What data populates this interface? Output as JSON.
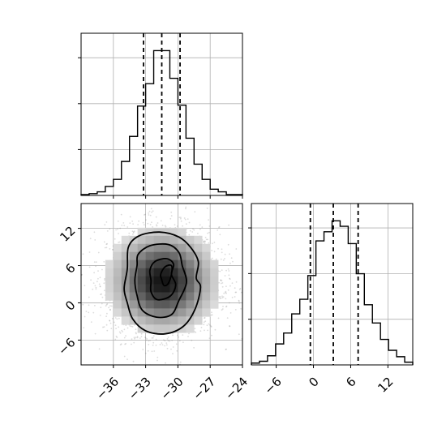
{
  "chart_data": {
    "type": "corner",
    "grid": true,
    "parameters": [
      {
        "range": [
          -39,
          -24
        ],
        "ticks": [
          -36,
          -33,
          -30,
          -27,
          -24
        ],
        "tick_labels": [
          "−36",
          "−33",
          "−30",
          "−27",
          "−24"
        ],
        "quantiles": [
          -33.2,
          -31.5,
          -29.8
        ],
        "histogram": {
          "edges": [
            -39,
            -38.25,
            -37.5,
            -36.75,
            -36,
            -35.25,
            -34.5,
            -33.75,
            -33,
            -32.25,
            -31.5,
            -30.75,
            -30,
            -29.25,
            -28.5,
            -27.75,
            -27,
            -26.25,
            -25.5,
            -24.75,
            -24
          ],
          "counts": [
            1,
            2,
            4,
            10,
            18,
            38,
            66,
            100,
            125,
            162,
            162,
            131,
            101,
            64,
            35,
            18,
            7,
            4,
            1,
            1
          ]
        }
      },
      {
        "range": [
          -10,
          16
        ],
        "ticks": [
          -6,
          0,
          6,
          12
        ],
        "tick_labels": [
          "−6",
          "0",
          "6",
          "12"
        ],
        "quantiles": [
          -0.5,
          3.2,
          7.2
        ],
        "histogram": {
          "edges": [
            -10,
            -8.7,
            -7.4,
            -6.1,
            -4.8,
            -3.5,
            -2.2,
            -0.9,
            0.4,
            1.7,
            3.0,
            4.3,
            5.6,
            6.9,
            8.2,
            9.5,
            10.8,
            12.1,
            13.4,
            14.7,
            16
          ],
          "counts": [
            2,
            4,
            10,
            23,
            35,
            56,
            72,
            98,
            136,
            146,
            158,
            152,
            133,
            100,
            66,
            46,
            28,
            16,
            9,
            3
          ]
        }
      }
    ],
    "joint": {
      "x_range": [
        -39,
        -24
      ],
      "y_range": [
        -10,
        16
      ],
      "x_ticks": [
        -36,
        -33,
        -30,
        -27,
        -24
      ],
      "y_ticks": [
        -6,
        0,
        6,
        12
      ],
      "y_tick_labels": [
        "−6",
        "0",
        "6",
        "12"
      ],
      "center": [
        -31.4,
        3.5
      ],
      "spread": [
        2.6,
        4.3
      ],
      "contours": [
        {
          "level": "outer",
          "points": [
            [
              -34.7,
              5.5
            ],
            [
              -34.6,
              9
            ],
            [
              -33.6,
              10.8
            ],
            [
              -31.7,
              11.4
            ],
            [
              -29.9,
              10.6
            ],
            [
              -28.8,
              8.9
            ],
            [
              -28.1,
              6.6
            ],
            [
              -28.3,
              4
            ],
            [
              -27.9,
              2.5
            ],
            [
              -28.4,
              -1
            ],
            [
              -29.5,
              -3.8
            ],
            [
              -31.2,
              -5
            ],
            [
              -33,
              -4.5
            ],
            [
              -34.2,
              -2.6
            ],
            [
              -34.7,
              0
            ],
            [
              -35,
              2.3
            ]
          ]
        },
        {
          "level": "middle",
          "points": [
            [
              -33.8,
              6
            ],
            [
              -33.7,
              7.8
            ],
            [
              -32.6,
              9.2
            ],
            [
              -30.9,
              9.4
            ],
            [
              -29.9,
              8.1
            ],
            [
              -29.6,
              6
            ],
            [
              -29.2,
              3.3
            ],
            [
              -29.9,
              0.4
            ],
            [
              -30.6,
              -1.9
            ],
            [
              -32,
              -2.3
            ],
            [
              -33.3,
              -1.2
            ],
            [
              -33.8,
              1.2
            ],
            [
              -34,
              3.6
            ]
          ]
        },
        {
          "level": "inner",
          "points": [
            [
              -32.6,
              5.3
            ],
            [
              -32.1,
              6.7
            ],
            [
              -31,
              7.1
            ],
            [
              -30.4,
              6.2
            ],
            [
              -30.6,
              4.6
            ],
            [
              -30.2,
              2.9
            ],
            [
              -30.7,
              1.1
            ],
            [
              -31.9,
              0.5
            ],
            [
              -32.5,
              1.8
            ],
            [
              -32.5,
              3.6
            ]
          ]
        },
        {
          "level": "core",
          "points": [
            [
              -31.2,
              5.8
            ],
            [
              -30.6,
              6
            ],
            [
              -30.6,
              4.6
            ],
            [
              -30.9,
              3.1
            ],
            [
              -31.3,
              2.8
            ],
            [
              -31.5,
              3.7
            ],
            [
              -31.6,
              4.6
            ]
          ]
        }
      ]
    }
  }
}
